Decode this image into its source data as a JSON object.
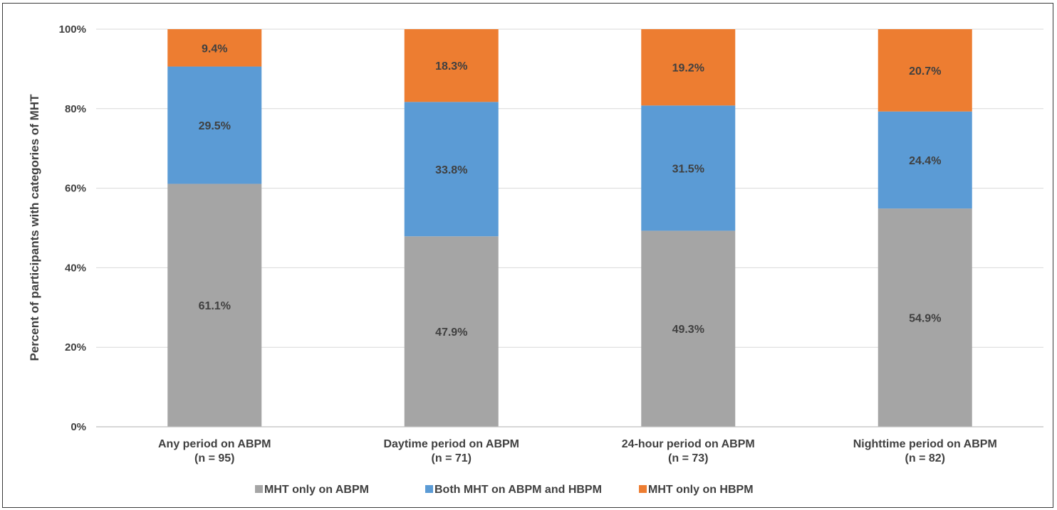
{
  "chart_data": {
    "type": "bar",
    "stacked": true,
    "title": "",
    "xlabel": "",
    "ylabel": "Percent of participants  with categories of MHT",
    "ylim": [
      0,
      100
    ],
    "yticks": [
      "0%",
      "20%",
      "40%",
      "60%",
      "80%",
      "100%"
    ],
    "grid": true,
    "legend_position": "bottom",
    "categories": [
      [
        "Any period on ABPM",
        "(n = 95)"
      ],
      [
        "Daytime period on ABPM",
        "(n = 71)"
      ],
      [
        "24-hour period on ABPM",
        "(n = 73)"
      ],
      [
        "Nighttime period on ABPM",
        "(n = 82)"
      ]
    ],
    "series": [
      {
        "name": "MHT only on ABPM",
        "color": "#a5a5a5",
        "values": [
          61.1,
          47.9,
          49.3,
          54.9
        ],
        "labels": [
          "61.1%",
          "47.9%",
          "49.3%",
          "54.9%"
        ]
      },
      {
        "name": "Both MHT on ABPM and HBPM",
        "color": "#5b9bd5",
        "values": [
          29.5,
          33.8,
          31.5,
          24.4
        ],
        "labels": [
          "29.5%",
          "33.8%",
          "31.5%",
          "24.4%"
        ]
      },
      {
        "name": "MHT only on HBPM",
        "color": "#ed7d31",
        "values": [
          9.4,
          18.3,
          19.2,
          20.7
        ],
        "labels": [
          "9.4%",
          "18.3%",
          "19.2%",
          "20.7%"
        ]
      }
    ]
  }
}
